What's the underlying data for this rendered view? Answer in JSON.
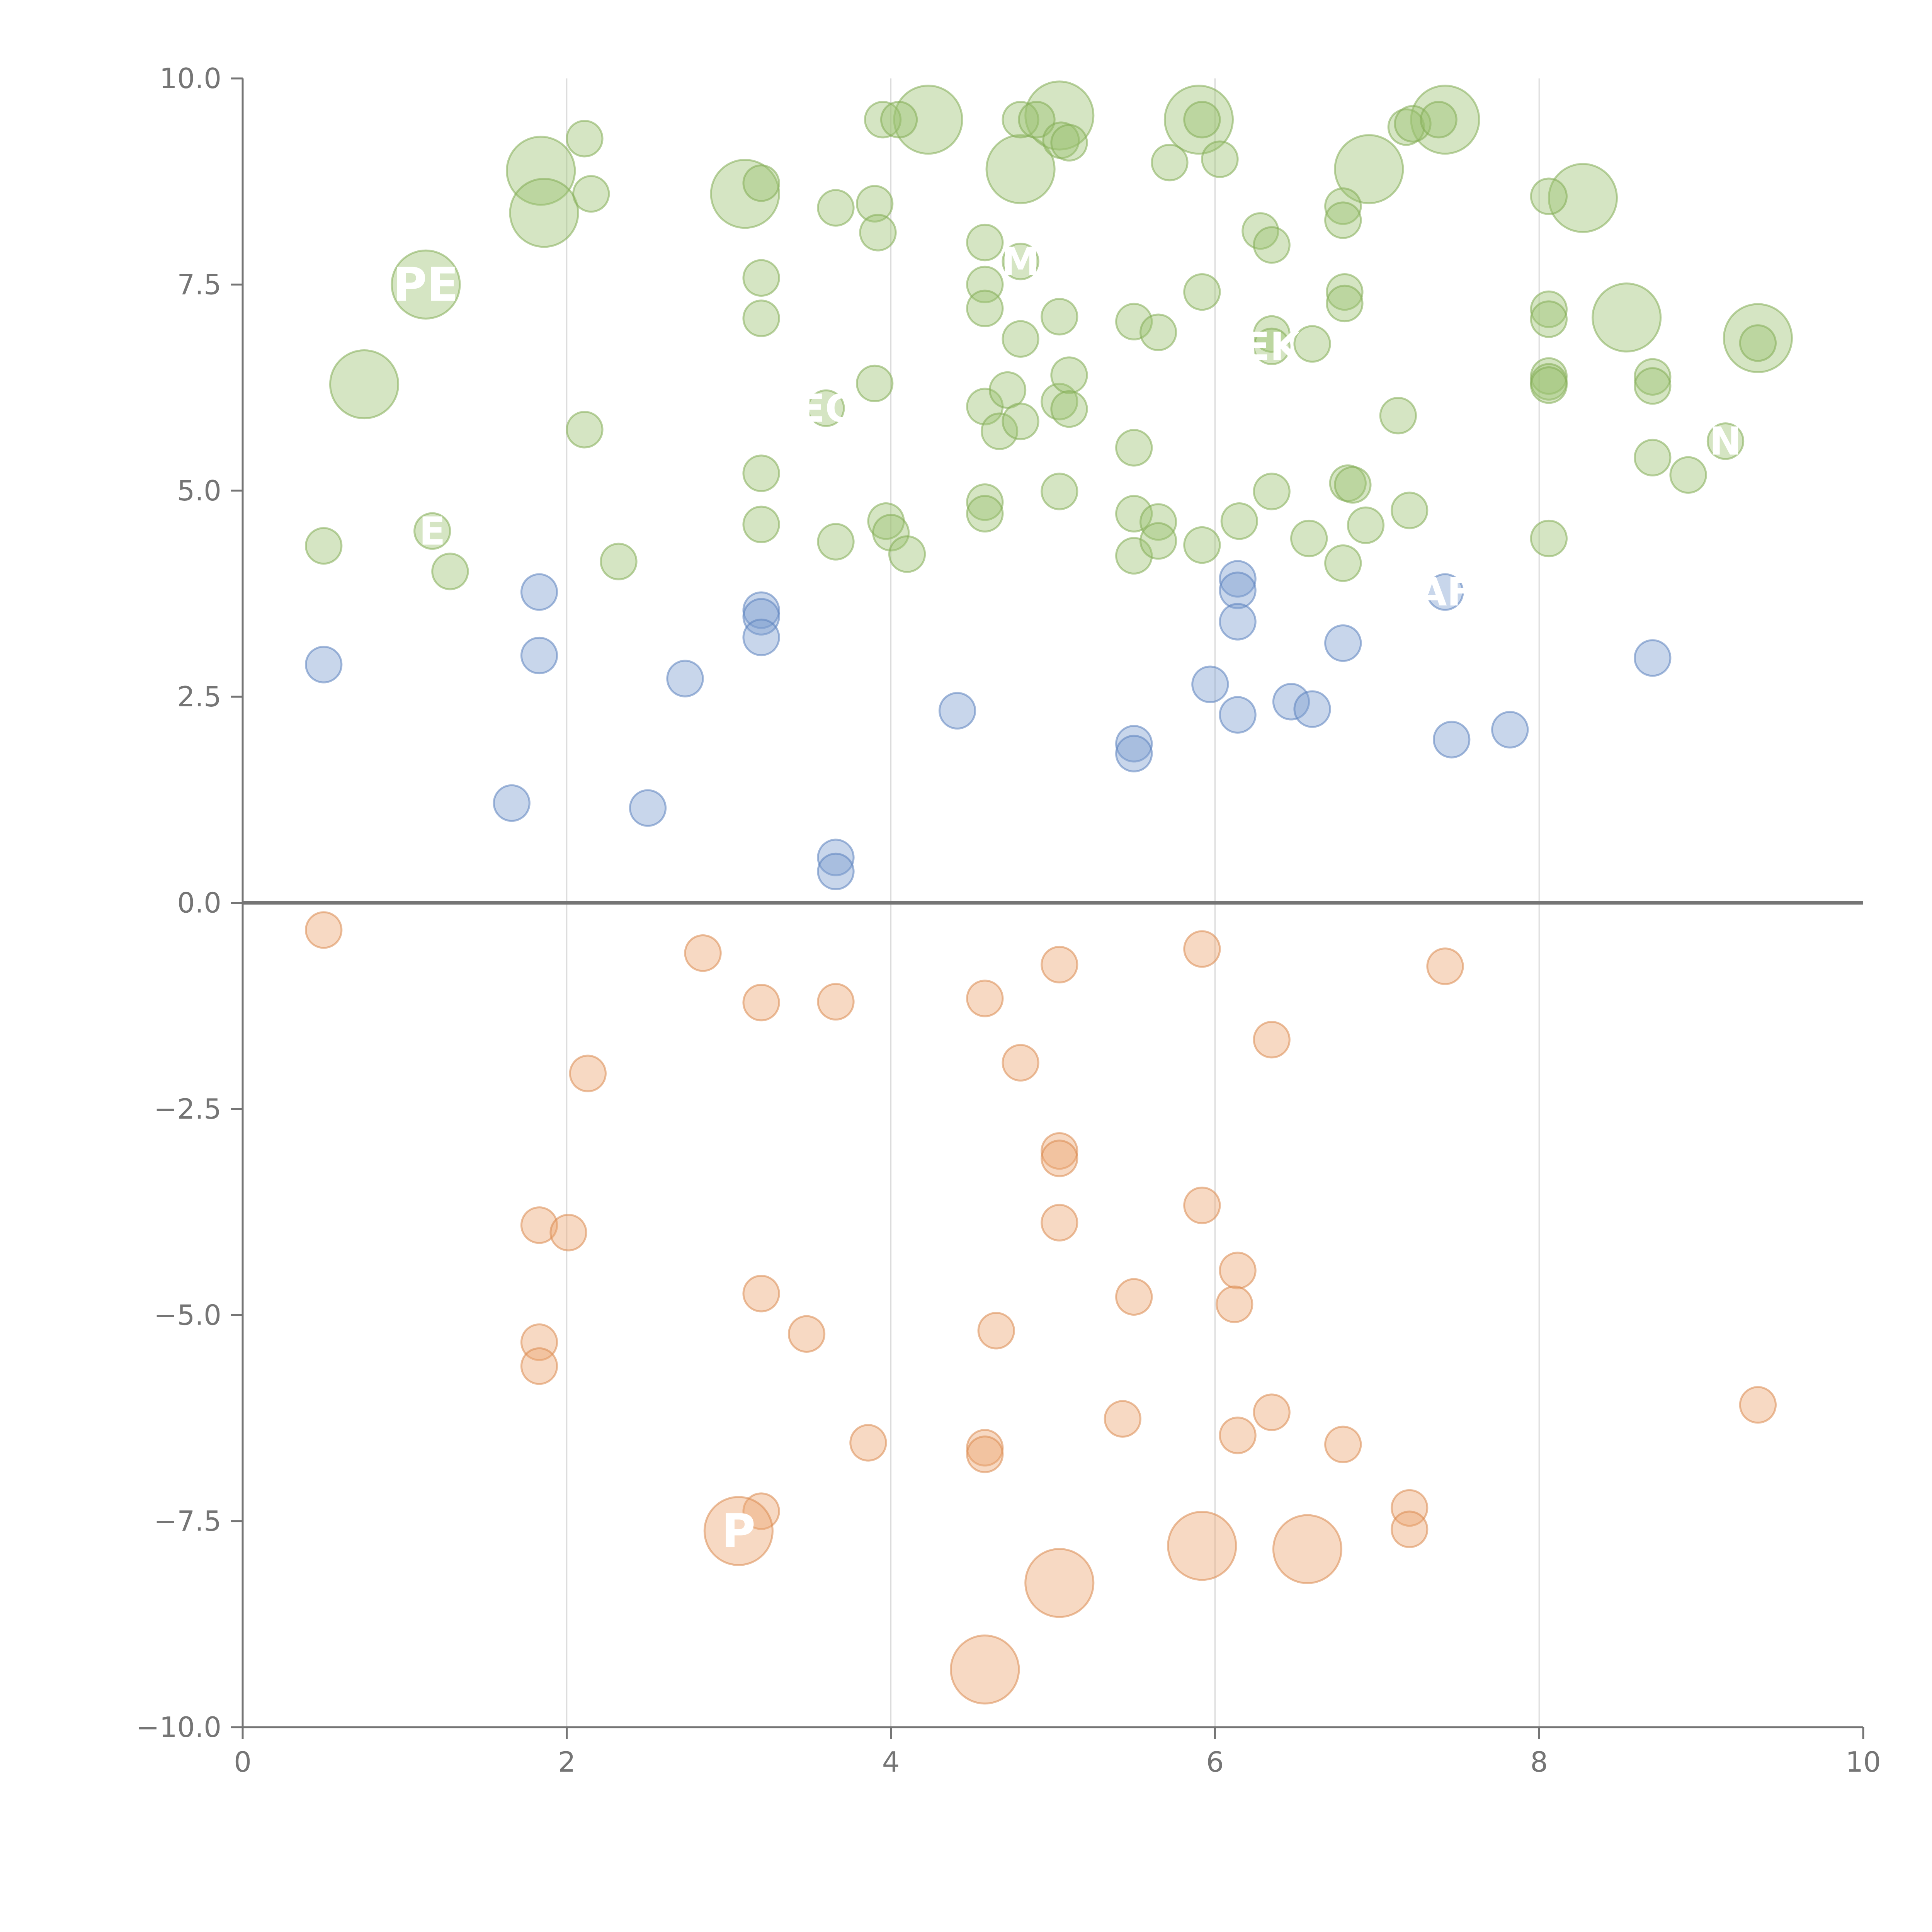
{
  "chart_data": {
    "type": "scatter",
    "title": "",
    "xlabel": "",
    "ylabel": "",
    "xlim": [
      0,
      10
    ],
    "ylim": [
      -10,
      10
    ],
    "x_ticks": [
      "0",
      "2",
      "4",
      "6",
      "8",
      "10"
    ],
    "y_ticks": [
      "−10.0",
      "−7.5",
      "−5.0",
      "−2.5",
      "0.0",
      "2.5",
      "5.0",
      "7.5",
      "10.0"
    ],
    "x_tick_values": [
      0,
      2,
      4,
      6,
      8,
      10
    ],
    "y_tick_values": [
      -10,
      -7.5,
      -5,
      -2.5,
      0,
      2.5,
      5,
      7.5,
      10
    ],
    "grid": "vertical",
    "legend": "none",
    "colors": {
      "green_fill": "#9cc16f",
      "green_stroke": "#84ad55",
      "blue_fill": "#7d9ed0",
      "blue_stroke": "#5b82bd",
      "orange_fill": "#eda570",
      "orange_stroke": "#db8a50",
      "axis": "#757575",
      "grid": "#d9d9d9",
      "label": "#ffffff"
    },
    "series": [
      {
        "name": "green",
        "color_key": "green",
        "points": [
          {
            "x": 1.84,
            "y": 8.88,
            "r": 0.21
          },
          {
            "x": 1.86,
            "y": 8.37,
            "r": 0.21
          },
          {
            "x": 1.13,
            "y": 7.5,
            "r": 0.21,
            "label": "PE"
          },
          {
            "x": 0.75,
            "y": 6.29,
            "r": 0.21
          },
          {
            "x": 3.1,
            "y": 8.6,
            "r": 0.21
          },
          {
            "x": 4.23,
            "y": 9.5,
            "r": 0.21
          },
          {
            "x": 4.8,
            "y": 8.9,
            "r": 0.21
          },
          {
            "x": 5.04,
            "y": 9.55,
            "r": 0.21
          },
          {
            "x": 5.9,
            "y": 9.5,
            "r": 0.21
          },
          {
            "x": 6.95,
            "y": 8.9,
            "r": 0.21
          },
          {
            "x": 7.42,
            "y": 9.5,
            "r": 0.21
          },
          {
            "x": 8.27,
            "y": 8.55,
            "r": 0.21
          },
          {
            "x": 8.54,
            "y": 7.1,
            "r": 0.21
          },
          {
            "x": 9.35,
            "y": 6.85,
            "r": 0.21
          },
          {
            "x": 2.11,
            "y": 9.27,
            "r": 0.11
          },
          {
            "x": 2.15,
            "y": 8.6,
            "r": 0.11
          },
          {
            "x": 3.2,
            "y": 8.73,
            "r": 0.11
          },
          {
            "x": 3.66,
            "y": 8.43,
            "r": 0.11
          },
          {
            "x": 3.9,
            "y": 8.48,
            "r": 0.11
          },
          {
            "x": 3.92,
            "y": 8.13,
            "r": 0.11
          },
          {
            "x": 3.95,
            "y": 9.5,
            "r": 0.11
          },
          {
            "x": 4.05,
            "y": 9.5,
            "r": 0.11
          },
          {
            "x": 4.8,
            "y": 9.5,
            "r": 0.11
          },
          {
            "x": 4.9,
            "y": 9.5,
            "r": 0.11
          },
          {
            "x": 5.05,
            "y": 9.25,
            "r": 0.11
          },
          {
            "x": 5.1,
            "y": 9.22,
            "r": 0.11
          },
          {
            "x": 5.72,
            "y": 8.98,
            "r": 0.11
          },
          {
            "x": 5.92,
            "y": 9.5,
            "r": 0.11
          },
          {
            "x": 6.03,
            "y": 9.02,
            "r": 0.11
          },
          {
            "x": 7.18,
            "y": 9.41,
            "r": 0.11
          },
          {
            "x": 7.22,
            "y": 9.45,
            "r": 0.11
          },
          {
            "x": 7.38,
            "y": 9.5,
            "r": 0.11
          },
          {
            "x": 8.06,
            "y": 8.57,
            "r": 0.11
          },
          {
            "x": 6.28,
            "y": 8.15,
            "r": 0.11
          },
          {
            "x": 6.35,
            "y": 7.98,
            "r": 0.11
          },
          {
            "x": 6.79,
            "y": 8.45,
            "r": 0.11
          },
          {
            "x": 6.79,
            "y": 8.28,
            "r": 0.11
          },
          {
            "x": 4.58,
            "y": 8.01,
            "r": 0.11
          },
          {
            "x": 4.8,
            "y": 7.78,
            "r": 0.11,
            "label": "M"
          },
          {
            "x": 4.58,
            "y": 7.5,
            "r": 0.11
          },
          {
            "x": 4.58,
            "y": 7.21,
            "r": 0.11
          },
          {
            "x": 4.8,
            "y": 6.84,
            "r": 0.11
          },
          {
            "x": 5.04,
            "y": 7.11,
            "r": 0.11
          },
          {
            "x": 5.5,
            "y": 7.05,
            "r": 0.11
          },
          {
            "x": 5.65,
            "y": 6.92,
            "r": 0.11
          },
          {
            "x": 5.92,
            "y": 7.41,
            "r": 0.11
          },
          {
            "x": 3.2,
            "y": 7.58,
            "r": 0.11
          },
          {
            "x": 3.2,
            "y": 7.09,
            "r": 0.11
          },
          {
            "x": 6.35,
            "y": 6.9,
            "r": 0.11
          },
          {
            "x": 6.35,
            "y": 6.75,
            "r": 0.11,
            "label": "EK"
          },
          {
            "x": 6.6,
            "y": 6.78,
            "r": 0.11
          },
          {
            "x": 6.8,
            "y": 7.41,
            "r": 0.11
          },
          {
            "x": 6.8,
            "y": 7.27,
            "r": 0.11
          },
          {
            "x": 8.06,
            "y": 7.2,
            "r": 0.11
          },
          {
            "x": 8.06,
            "y": 7.08,
            "r": 0.11
          },
          {
            "x": 8.06,
            "y": 6.39,
            "r": 0.11
          },
          {
            "x": 8.06,
            "y": 6.32,
            "r": 0.11
          },
          {
            "x": 8.06,
            "y": 6.28,
            "r": 0.11
          },
          {
            "x": 8.7,
            "y": 6.38,
            "r": 0.11
          },
          {
            "x": 8.7,
            "y": 6.27,
            "r": 0.11
          },
          {
            "x": 9.35,
            "y": 6.79,
            "r": 0.11
          },
          {
            "x": 3.6,
            "y": 6.0,
            "r": 0.11,
            "label": "EC"
          },
          {
            "x": 3.9,
            "y": 6.3,
            "r": 0.11
          },
          {
            "x": 4.58,
            "y": 6.02,
            "r": 0.11
          },
          {
            "x": 4.72,
            "y": 6.22,
            "r": 0.11
          },
          {
            "x": 4.67,
            "y": 5.72,
            "r": 0.11
          },
          {
            "x": 4.8,
            "y": 5.84,
            "r": 0.11
          },
          {
            "x": 5.04,
            "y": 6.08,
            "r": 0.11
          },
          {
            "x": 5.1,
            "y": 6.4,
            "r": 0.11
          },
          {
            "x": 5.1,
            "y": 5.99,
            "r": 0.11
          },
          {
            "x": 7.13,
            "y": 5.91,
            "r": 0.11
          },
          {
            "x": 9.15,
            "y": 5.6,
            "r": 0.11,
            "label": "N"
          },
          {
            "x": 8.7,
            "y": 5.4,
            "r": 0.11
          },
          {
            "x": 8.92,
            "y": 5.19,
            "r": 0.11
          },
          {
            "x": 2.11,
            "y": 5.74,
            "r": 0.11
          },
          {
            "x": 5.5,
            "y": 5.52,
            "r": 0.11
          },
          {
            "x": 3.2,
            "y": 5.21,
            "r": 0.11
          },
          {
            "x": 5.04,
            "y": 4.99,
            "r": 0.11
          },
          {
            "x": 6.35,
            "y": 4.99,
            "r": 0.11
          },
          {
            "x": 6.82,
            "y": 5.09,
            "r": 0.11
          },
          {
            "x": 6.85,
            "y": 5.07,
            "r": 0.11
          },
          {
            "x": 4.58,
            "y": 4.86,
            "r": 0.11
          },
          {
            "x": 4.58,
            "y": 4.72,
            "r": 0.11
          },
          {
            "x": 5.5,
            "y": 4.72,
            "r": 0.11
          },
          {
            "x": 5.65,
            "y": 4.62,
            "r": 0.11
          },
          {
            "x": 6.15,
            "y": 4.63,
            "r": 0.11
          },
          {
            "x": 7.2,
            "y": 4.76,
            "r": 0.11
          },
          {
            "x": 6.93,
            "y": 4.58,
            "r": 0.11
          },
          {
            "x": 1.17,
            "y": 4.51,
            "r": 0.11,
            "label": "E"
          },
          {
            "x": 1.28,
            "y": 4.02,
            "r": 0.11
          },
          {
            "x": 0.5,
            "y": 4.33,
            "r": 0.11
          },
          {
            "x": 2.32,
            "y": 4.14,
            "r": 0.11
          },
          {
            "x": 3.2,
            "y": 4.59,
            "r": 0.11
          },
          {
            "x": 3.66,
            "y": 4.38,
            "r": 0.11
          },
          {
            "x": 3.97,
            "y": 4.63,
            "r": 0.11
          },
          {
            "x": 4.0,
            "y": 4.49,
            "r": 0.11
          },
          {
            "x": 4.1,
            "y": 4.23,
            "r": 0.11
          },
          {
            "x": 5.5,
            "y": 4.21,
            "r": 0.11
          },
          {
            "x": 5.65,
            "y": 4.39,
            "r": 0.11
          },
          {
            "x": 5.92,
            "y": 4.34,
            "r": 0.11
          },
          {
            "x": 6.58,
            "y": 4.42,
            "r": 0.11
          },
          {
            "x": 6.79,
            "y": 4.12,
            "r": 0.11
          },
          {
            "x": 8.06,
            "y": 4.42,
            "r": 0.11
          }
        ]
      },
      {
        "name": "blue",
        "color_key": "blue",
        "points": [
          {
            "x": 1.83,
            "y": 3.77,
            "r": 0.11
          },
          {
            "x": 1.83,
            "y": 3.0,
            "r": 0.11
          },
          {
            "x": 0.5,
            "y": 2.89,
            "r": 0.11
          },
          {
            "x": 3.2,
            "y": 3.55,
            "r": 0.11
          },
          {
            "x": 3.2,
            "y": 3.47,
            "r": 0.11
          },
          {
            "x": 3.2,
            "y": 3.22,
            "r": 0.11
          },
          {
            "x": 2.73,
            "y": 2.72,
            "r": 0.11
          },
          {
            "x": 6.14,
            "y": 3.93,
            "r": 0.11
          },
          {
            "x": 6.14,
            "y": 3.79,
            "r": 0.11
          },
          {
            "x": 6.14,
            "y": 3.41,
            "r": 0.11
          },
          {
            "x": 7.42,
            "y": 3.77,
            "r": 0.11,
            "label": "AF"
          },
          {
            "x": 6.79,
            "y": 3.15,
            "r": 0.11
          },
          {
            "x": 8.7,
            "y": 2.97,
            "r": 0.11
          },
          {
            "x": 5.97,
            "y": 2.65,
            "r": 0.11
          },
          {
            "x": 6.14,
            "y": 2.28,
            "r": 0.11
          },
          {
            "x": 6.47,
            "y": 2.44,
            "r": 0.11
          },
          {
            "x": 6.6,
            "y": 2.35,
            "r": 0.11
          },
          {
            "x": 4.41,
            "y": 2.33,
            "r": 0.11
          },
          {
            "x": 7.82,
            "y": 2.1,
            "r": 0.11
          },
          {
            "x": 7.46,
            "y": 1.98,
            "r": 0.11
          },
          {
            "x": 5.5,
            "y": 1.93,
            "r": 0.11
          },
          {
            "x": 5.5,
            "y": 1.81,
            "r": 0.11
          },
          {
            "x": 1.66,
            "y": 1.21,
            "r": 0.11
          },
          {
            "x": 2.5,
            "y": 1.15,
            "r": 0.11
          },
          {
            "x": 3.66,
            "y": 0.55,
            "r": 0.11
          },
          {
            "x": 3.66,
            "y": 0.38,
            "r": 0.11
          }
        ]
      },
      {
        "name": "orange",
        "color_key": "orange",
        "points": [
          {
            "x": 0.5,
            "y": -0.33,
            "r": 0.11
          },
          {
            "x": 2.84,
            "y": -0.61,
            "r": 0.11
          },
          {
            "x": 3.2,
            "y": -1.21,
            "r": 0.11
          },
          {
            "x": 3.66,
            "y": -1.2,
            "r": 0.11
          },
          {
            "x": 4.58,
            "y": -1.16,
            "r": 0.11
          },
          {
            "x": 5.04,
            "y": -0.75,
            "r": 0.11
          },
          {
            "x": 5.92,
            "y": -0.56,
            "r": 0.11
          },
          {
            "x": 7.42,
            "y": -0.77,
            "r": 0.11
          },
          {
            "x": 6.35,
            "y": -1.66,
            "r": 0.11
          },
          {
            "x": 4.8,
            "y": -1.94,
            "r": 0.11
          },
          {
            "x": 2.13,
            "y": -2.07,
            "r": 0.11
          },
          {
            "x": 5.04,
            "y": -3.01,
            "r": 0.11
          },
          {
            "x": 5.04,
            "y": -3.1,
            "r": 0.11
          },
          {
            "x": 5.92,
            "y": -3.67,
            "r": 0.11
          },
          {
            "x": 5.04,
            "y": -3.88,
            "r": 0.11
          },
          {
            "x": 1.83,
            "y": -3.91,
            "r": 0.11
          },
          {
            "x": 2.01,
            "y": -4.0,
            "r": 0.11
          },
          {
            "x": 6.14,
            "y": -4.46,
            "r": 0.11
          },
          {
            "x": 3.2,
            "y": -4.74,
            "r": 0.11
          },
          {
            "x": 5.5,
            "y": -4.78,
            "r": 0.11
          },
          {
            "x": 6.12,
            "y": -4.87,
            "r": 0.11
          },
          {
            "x": 4.65,
            "y": -5.19,
            "r": 0.11
          },
          {
            "x": 3.48,
            "y": -5.23,
            "r": 0.11
          },
          {
            "x": 1.83,
            "y": -5.33,
            "r": 0.11
          },
          {
            "x": 1.83,
            "y": -5.62,
            "r": 0.11
          },
          {
            "x": 9.35,
            "y": -6.09,
            "r": 0.11
          },
          {
            "x": 6.35,
            "y": -6.18,
            "r": 0.11
          },
          {
            "x": 5.43,
            "y": -6.26,
            "r": 0.11
          },
          {
            "x": 6.14,
            "y": -6.46,
            "r": 0.11
          },
          {
            "x": 3.86,
            "y": -6.55,
            "r": 0.11
          },
          {
            "x": 4.58,
            "y": -6.61,
            "r": 0.11
          },
          {
            "x": 4.58,
            "y": -6.69,
            "r": 0.11
          },
          {
            "x": 6.79,
            "y": -6.57,
            "r": 0.11
          },
          {
            "x": 3.2,
            "y": -7.38,
            "r": 0.11
          },
          {
            "x": 7.2,
            "y": -7.34,
            "r": 0.11
          },
          {
            "x": 7.2,
            "y": -7.6,
            "r": 0.11
          },
          {
            "x": 3.06,
            "y": -7.62,
            "r": 0.21,
            "label": "P"
          },
          {
            "x": 5.92,
            "y": -7.8,
            "r": 0.21
          },
          {
            "x": 6.57,
            "y": -7.84,
            "r": 0.21
          },
          {
            "x": 5.04,
            "y": -8.25,
            "r": 0.21
          },
          {
            "x": 4.58,
            "y": -9.3,
            "r": 0.21
          }
        ]
      }
    ]
  }
}
